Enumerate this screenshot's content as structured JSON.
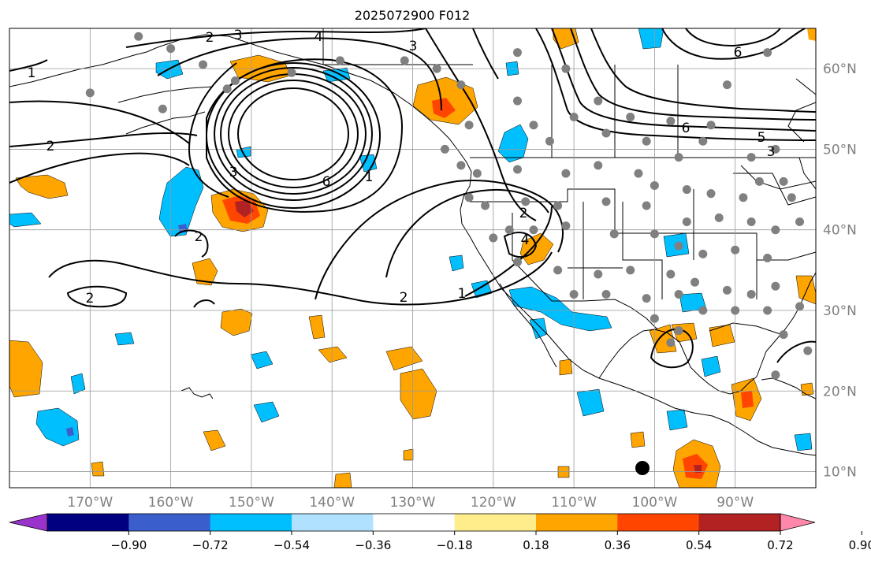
{
  "title": "2025072900 F012",
  "map": {
    "lon_range": [
      -180,
      -80
    ],
    "lat_range": [
      8,
      65
    ],
    "lon_ticks": [
      {
        "lon": -170,
        "label": "170°W"
      },
      {
        "lon": -160,
        "label": "160°W"
      },
      {
        "lon": -150,
        "label": "150°W"
      },
      {
        "lon": -140,
        "label": "140°W"
      },
      {
        "lon": -130,
        "label": "130°W"
      },
      {
        "lon": -120,
        "label": "120°W"
      },
      {
        "lon": -110,
        "label": "110°W"
      },
      {
        "lon": -100,
        "label": "100°W"
      },
      {
        "lon": -90,
        "label": "90°W"
      }
    ],
    "lat_ticks": [
      {
        "lat": 60,
        "label": "60°N"
      },
      {
        "lat": 50,
        "label": "50°N"
      },
      {
        "lat": 40,
        "label": "40°N"
      },
      {
        "lat": 30,
        "label": "30°N"
      },
      {
        "lat": 20,
        "label": "20°N"
      },
      {
        "lat": 10,
        "label": "10°N"
      }
    ],
    "grid": true,
    "tick_label_color": "#808080"
  },
  "colorbar": {
    "colors": [
      "#9933cc",
      "#000080",
      "#3a5fcd",
      "#00bfff",
      "#b0e2ff",
      "#ffffff",
      "#ffec8b",
      "#ffa500",
      "#ff4500",
      "#b22222",
      "#ff88aa"
    ],
    "ticks": [
      "−0.90",
      "−0.72",
      "−0.54",
      "−0.36",
      "−0.18",
      "0.18",
      "0.36",
      "0.54",
      "0.72",
      "0.90"
    ]
  },
  "contour_labels": [
    "2",
    "3",
    "4",
    "6",
    "1",
    "2",
    "2",
    "2",
    "1",
    "2",
    "4",
    "6",
    "5",
    "3",
    "3",
    "6",
    "2",
    "1",
    "3"
  ],
  "stations": [
    [
      -164,
      64
    ],
    [
      -160,
      62.5
    ],
    [
      -156,
      60.5
    ],
    [
      -152,
      58.5
    ],
    [
      -145,
      59.5
    ],
    [
      -139,
      61
    ],
    [
      -131,
      61
    ],
    [
      -127,
      60
    ],
    [
      -124,
      58
    ],
    [
      -117,
      62
    ],
    [
      -111,
      60
    ],
    [
      -107,
      56
    ],
    [
      -103,
      54
    ],
    [
      -98,
      53.5
    ],
    [
      -93,
      53
    ],
    [
      -86,
      62
    ],
    [
      -91,
      58
    ],
    [
      -117,
      56
    ],
    [
      -123,
      53
    ],
    [
      -115,
      53
    ],
    [
      -113,
      51
    ],
    [
      -110,
      54
    ],
    [
      -106,
      52
    ],
    [
      -101,
      51
    ],
    [
      -97,
      49
    ],
    [
      -94,
      51
    ],
    [
      -88,
      49
    ],
    [
      -85,
      50
    ],
    [
      -126,
      50
    ],
    [
      -124,
      48
    ],
    [
      -122,
      47
    ],
    [
      -117,
      47.5
    ],
    [
      -111,
      47
    ],
    [
      -107,
      48
    ],
    [
      -102,
      47
    ],
    [
      -100,
      45.5
    ],
    [
      -96,
      45
    ],
    [
      -93,
      44.5
    ],
    [
      -89,
      44
    ],
    [
      -87,
      46
    ],
    [
      -83,
      44
    ],
    [
      -84,
      46
    ],
    [
      -123,
      44
    ],
    [
      -121,
      43
    ],
    [
      -116,
      43.5
    ],
    [
      -112,
      43
    ],
    [
      -106,
      43.5
    ],
    [
      -101,
      43
    ],
    [
      -96,
      41
    ],
    [
      -92,
      41.5
    ],
    [
      -88,
      41
    ],
    [
      -85,
      40
    ],
    [
      -82,
      41
    ],
    [
      -120,
      39
    ],
    [
      -118,
      40
    ],
    [
      -115,
      40
    ],
    [
      -111,
      40.5
    ],
    [
      -105,
      39.5
    ],
    [
      -100,
      39.5
    ],
    [
      -97,
      38
    ],
    [
      -94,
      37
    ],
    [
      -90,
      37.5
    ],
    [
      -86,
      36.5
    ],
    [
      -117,
      36
    ],
    [
      -112,
      35
    ],
    [
      -107,
      34.5
    ],
    [
      -103,
      35
    ],
    [
      -98,
      34.5
    ],
    [
      -95,
      33.5
    ],
    [
      -91,
      32.5
    ],
    [
      -88,
      32
    ],
    [
      -85,
      33
    ],
    [
      -110,
      32
    ],
    [
      -106,
      32
    ],
    [
      -101,
      31.5
    ],
    [
      -97,
      32
    ],
    [
      -94,
      30
    ],
    [
      -90,
      30
    ],
    [
      -86,
      30
    ],
    [
      -82,
      30.5
    ],
    [
      -100,
      29
    ],
    [
      -97,
      27.5
    ],
    [
      -98,
      26
    ],
    [
      -84,
      27
    ],
    [
      -81,
      25
    ],
    [
      -85,
      22
    ],
    [
      -170,
      57
    ],
    [
      -161,
      55
    ],
    [
      -153,
      57.5
    ]
  ]
}
